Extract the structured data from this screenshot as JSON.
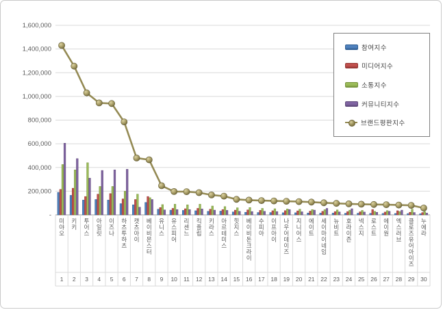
{
  "frame": {
    "background": "#ffffff",
    "border_color": "#c9c9c9"
  },
  "legend": {
    "items": [
      {
        "label": "참여지수",
        "color": "#4F81BD",
        "border": "#2F5E93",
        "type": "bar"
      },
      {
        "label": "미디어지수",
        "color": "#C0504D",
        "border": "#943634",
        "type": "bar"
      },
      {
        "label": "소통지수",
        "color": "#9BBB59",
        "border": "#76933C",
        "type": "bar"
      },
      {
        "label": "커뮤니티지수",
        "color": "#8064A2",
        "border": "#5F497A",
        "type": "bar"
      },
      {
        "label": "브랜드평판지수",
        "color": "#948A54",
        "border": "#6B6236",
        "type": "line"
      }
    ]
  },
  "chart_data": {
    "type": "bar",
    "title": "",
    "legend_position": "top-right",
    "grid": true,
    "categories": [
      "미야오",
      "키키",
      "투어스",
      "아일릿",
      "이즈나",
      "하츠투하츠",
      "캣츠아이",
      "베이비몬스터",
      "유니스",
      "유스피어",
      "리센느",
      "킥플립",
      "키라스",
      "아르테미스",
      "힛지스",
      "베이비돈크라이",
      "수피아",
      "이프아이",
      "나우어데이즈",
      "지니어스",
      "에이트",
      "세이마이네임",
      "뉴비트",
      "호라이즌",
      "넥스지",
      "로스트",
      "에이원",
      "엑스러브",
      "클로즈유어아이즈",
      "누에라"
    ],
    "ranks": [
      "1",
      "2",
      "3",
      "4",
      "5",
      "6",
      "7",
      "8",
      "9",
      "10",
      "11",
      "12",
      "13",
      "14",
      "15",
      "16",
      "17",
      "18",
      "19",
      "20",
      "21",
      "22",
      "23",
      "24",
      "25",
      "26",
      "27",
      "28",
      "29",
      "30"
    ],
    "series": [
      {
        "name": "참여지수",
        "kind": "bar",
        "color": "#4F81BD",
        "border": "#2F5E93",
        "values": [
          190000,
          165000,
          125000,
          130000,
          125000,
          95000,
          85000,
          105000,
          48000,
          40000,
          38000,
          35000,
          30000,
          32000,
          25000,
          22000,
          20000,
          20000,
          18000,
          18000,
          16000,
          15000,
          15000,
          14000,
          14000,
          13000,
          12000,
          12000,
          11000,
          10000
        ]
      },
      {
        "name": "미디어지수",
        "kind": "bar",
        "color": "#C0504D",
        "border": "#943634",
        "values": [
          215000,
          225000,
          155000,
          175000,
          180000,
          135000,
          130000,
          155000,
          62000,
          55000,
          52000,
          55000,
          48000,
          45000,
          40000,
          42000,
          38000,
          35000,
          36000,
          34000,
          32000,
          30000,
          28000,
          28000,
          26000,
          45000,
          24000,
          35000,
          22000,
          20000
        ]
      },
      {
        "name": "소통지수",
        "kind": "bar",
        "color": "#9BBB59",
        "border": "#76933C",
        "values": [
          425000,
          380000,
          440000,
          240000,
          240000,
          200000,
          175000,
          145000,
          87000,
          90000,
          85000,
          90000,
          75000,
          70000,
          60000,
          62000,
          55000,
          52000,
          50000,
          48000,
          45000,
          44000,
          42000,
          40000,
          38000,
          30000,
          36000,
          28000,
          48000,
          28000
        ]
      },
      {
        "name": "커뮤니티지수",
        "kind": "bar",
        "color": "#8064A2",
        "border": "#5F497A",
        "values": [
          605000,
          475000,
          310000,
          375000,
          380000,
          385000,
          65000,
          130000,
          42000,
          45000,
          45000,
          50000,
          40000,
          38000,
          30000,
          28000,
          30000,
          28000,
          45000,
          26000,
          40000,
          55000,
          25000,
          52000,
          24000,
          22000,
          30000,
          40000,
          20000,
          15000
        ]
      },
      {
        "name": "브랜드평판지수",
        "kind": "line",
        "color": "#948A54",
        "border": "#6B6236",
        "values": [
          1430000,
          1255000,
          1030000,
          945000,
          940000,
          785000,
          480000,
          465000,
          246000,
          197000,
          196000,
          188000,
          168000,
          158000,
          131000,
          125000,
          121000,
          118000,
          115000,
          112000,
          108000,
          102000,
          97000,
          93000,
          90000,
          88000,
          86000,
          83000,
          80000,
          58000
        ]
      }
    ],
    "y_axis": {
      "min": 0,
      "max": 1600000,
      "step": 200000,
      "tick_labels": [
        "-",
        "200,000",
        "400,000",
        "600,000",
        "800,000",
        "1,000,000",
        "1,200,000",
        "1,400,000",
        "1,600,000"
      ]
    },
    "axis_colors": {
      "grid": "#d9d9d9",
      "axis_line": "#9a9a9a",
      "tick_text": "#595959"
    }
  }
}
